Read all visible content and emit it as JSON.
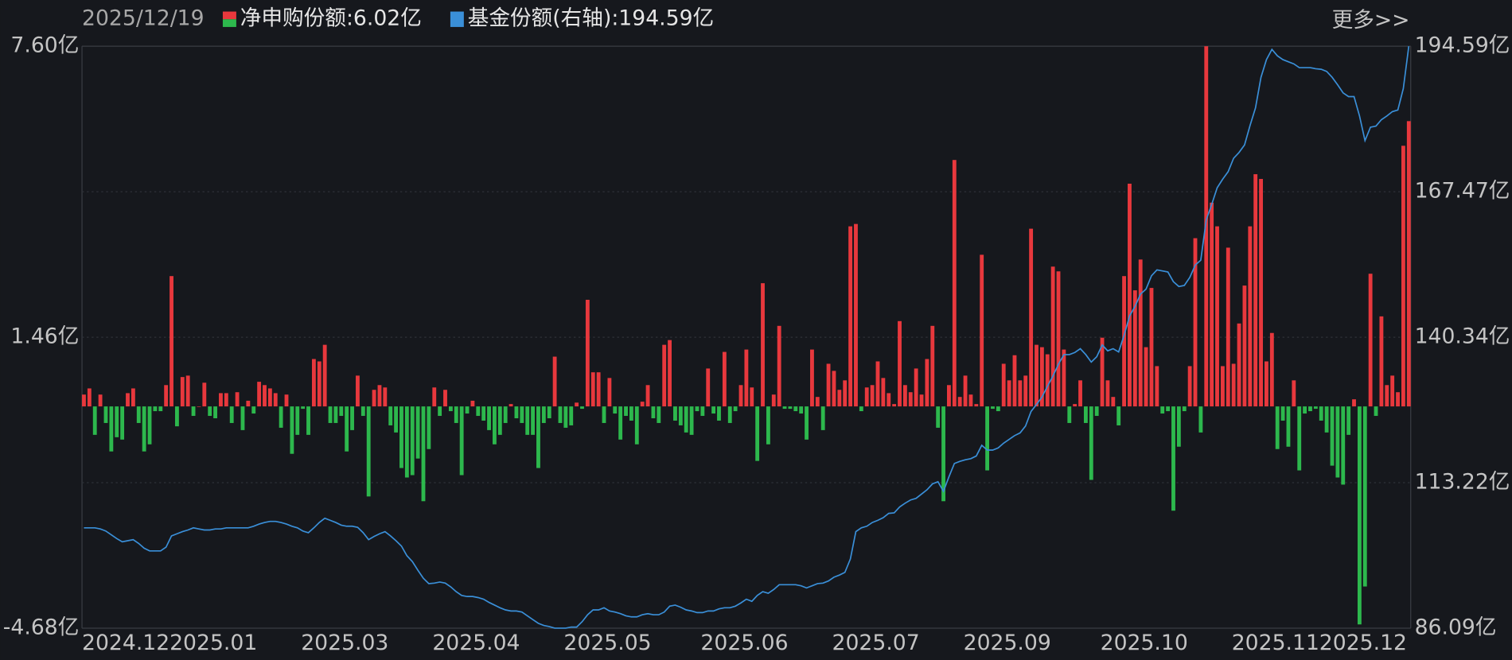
{
  "chart_data": {
    "type": "bar_line",
    "date": "2025/12/19",
    "more": "更多>>",
    "categories": [
      "2024.12",
      null,
      null,
      null,
      null,
      null,
      null,
      null,
      null,
      null,
      null,
      null,
      null,
      null,
      null,
      null,
      "2025.01",
      null,
      null,
      null,
      null,
      null,
      null,
      null,
      null,
      null,
      null,
      null,
      null,
      null,
      null,
      null,
      null,
      null,
      null,
      null,
      null,
      null,
      null,
      null,
      "2025.03",
      null,
      null,
      null,
      null,
      null,
      null,
      null,
      null,
      null,
      null,
      null,
      null,
      null,
      null,
      null,
      null,
      null,
      null,
      null,
      null,
      null,
      null,
      null,
      "2025.04",
      null,
      null,
      null,
      null,
      null,
      null,
      null,
      null,
      null,
      null,
      null,
      null,
      null,
      null,
      null,
      null,
      null,
      null,
      null,
      null,
      null,
      null,
      null,
      "2025.05",
      null,
      null,
      null,
      null,
      null,
      null,
      null,
      null,
      null,
      null,
      null,
      null,
      null,
      null,
      null,
      null,
      null,
      null,
      null,
      null,
      null,
      null,
      null,
      null,
      "2025.06",
      null,
      null,
      null,
      null,
      null,
      null,
      null,
      null,
      null,
      null,
      null,
      null,
      null,
      null,
      null,
      null,
      null,
      null,
      null,
      null,
      null,
      null,
      null,
      "2025.07",
      null,
      null,
      null,
      null,
      null,
      null,
      null,
      null,
      null,
      null,
      null,
      null,
      null,
      null,
      null,
      null,
      null,
      null,
      null,
      null,
      null,
      null,
      null,
      "2025.09",
      null,
      null,
      null,
      null,
      null,
      null,
      null,
      null,
      null,
      null,
      null,
      null,
      null,
      null,
      null,
      null,
      null,
      null,
      null,
      null,
      null,
      null,
      null,
      null,
      "2025.10",
      null,
      null,
      null,
      null,
      null,
      null,
      null,
      null,
      null,
      null,
      null,
      null,
      null,
      null,
      null,
      null,
      null,
      null,
      null,
      null,
      null,
      null,
      null,
      "2025.11",
      null,
      null,
      null,
      null,
      null,
      null,
      null,
      null,
      null,
      null,
      null,
      null,
      null,
      null,
      null,
      "2025.12",
      null,
      null,
      null,
      null,
      null,
      null,
      null,
      null,
      null,
      null,
      null,
      null,
      null,
      null,
      null,
      null
    ],
    "series": [
      {
        "name": "净申购份额:6.02亿",
        "type": "bar",
        "color": "#e8383d",
        "negative_color": "#2db84d",
        "values": [
          0.25,
          0.38,
          -0.6,
          0.25,
          -0.35,
          -0.95,
          -0.65,
          -0.7,
          0.28,
          0.38,
          -0.35,
          -0.95,
          -0.8,
          -0.1,
          -0.1,
          0.45,
          2.75,
          -0.42,
          0.62,
          0.65,
          -0.2,
          0,
          0.5,
          -0.2,
          -0.25,
          0.28,
          0.28,
          -0.35,
          0.3,
          -0.5,
          0.12,
          -0.15,
          0.52,
          0.45,
          0.38,
          0.28,
          -0.45,
          0.25,
          -1.0,
          -0.6,
          -0.05,
          -0.6,
          1.0,
          0.95,
          1.3,
          -0.35,
          -0.35,
          -0.2,
          -0.95,
          -0.5,
          0.65,
          -0.2,
          -1.9,
          0.35,
          0.45,
          0.4,
          -0.4,
          -0.55,
          -1.3,
          -1.5,
          -1.45,
          -1.1,
          -2.0,
          -0.9,
          0.4,
          -0.2,
          0.35,
          -0.1,
          -0.35,
          -1.45,
          -0.15,
          0.12,
          -0.2,
          -0.3,
          -0.5,
          -0.8,
          -0.6,
          -0.35,
          0.05,
          -0.25,
          -0.35,
          -0.6,
          -0.6,
          -1.3,
          -0.35,
          -0.25,
          1.05,
          -0.35,
          -0.45,
          -0.4,
          0.08,
          -0.05,
          2.25,
          0.72,
          0.72,
          -0.35,
          0.6,
          -0.15,
          -0.7,
          -0.2,
          -0.3,
          -0.8,
          0.1,
          0.45,
          -0.25,
          -0.35,
          1.3,
          1.4,
          -0.3,
          -0.4,
          -0.55,
          -0.6,
          -0.1,
          -0.2,
          0.8,
          -0.15,
          -0.3,
          1.15,
          -0.35,
          -0.1,
          0.45,
          1.2,
          0.4,
          -1.15,
          2.6,
          -0.8,
          0.25,
          1.7,
          -0.05,
          -0.05,
          -0.1,
          -0.15,
          -0.7,
          1.2,
          0.2,
          -0.5,
          0.9,
          0.75,
          0.35,
          0.55,
          3.8,
          3.85,
          -0.1,
          0.4,
          0.45,
          0.95,
          0.6,
          0.28,
          0.05,
          1.8,
          0.45,
          0.3,
          0.8,
          0.25,
          1.0,
          1.7,
          -0.45,
          -2.0,
          0.45,
          5.2,
          0.2,
          0.65,
          0.25,
          0.05,
          3.2,
          -1.35,
          -0.05,
          -0.1,
          0.9,
          0.55,
          1.08,
          0.55,
          0.65,
          3.75,
          1.3,
          1.25,
          1.1,
          2.95,
          2.85,
          1.2,
          -0.35,
          0.05,
          0.55,
          -0.35,
          -1.55,
          -0.2,
          1.45,
          0.55,
          0.2,
          -0.4,
          2.75,
          4.7,
          2.45,
          3.1,
          1.25,
          2.5,
          0.85,
          -0.15,
          -0.1,
          -2.2,
          -0.85,
          -0.1,
          0.85,
          3.55,
          -0.55,
          7.6,
          4.3,
          3.8,
          0.85,
          3.35,
          0.9,
          1.75,
          2.55,
          3.8,
          4.9,
          4.8,
          0.95,
          1.55,
          -0.9,
          -0.3,
          -0.85,
          0.55,
          -1.35,
          -0.15,
          -0.1,
          -0.05,
          -0.3,
          -0.55,
          -1.25,
          -1.5,
          -1.65,
          -0.6,
          0.15,
          -4.6,
          -3.8,
          2.8,
          -0.2,
          1.9,
          0.45,
          0.65,
          0.3,
          5.5,
          6.02
        ]
      },
      {
        "name": "基金份额(右轴):194.59亿",
        "type": "line",
        "axis": "y2",
        "color": "#3a8fd8",
        "values": [
          104.8,
          104.8,
          104.8,
          104.6,
          104.2,
          103.5,
          102.8,
          102.2,
          102.4,
          102.6,
          101.9,
          101.0,
          100.5,
          100.5,
          100.5,
          101.2,
          103.3,
          103.7,
          104.1,
          104.4,
          104.8,
          104.6,
          104.4,
          104.4,
          104.6,
          104.6,
          104.8,
          104.8,
          104.8,
          104.8,
          104.8,
          105.1,
          105.5,
          105.8,
          106.0,
          106.0,
          105.8,
          105.5,
          105.1,
          104.8,
          104.2,
          103.9,
          104.8,
          105.8,
          106.6,
          106.2,
          105.8,
          105.3,
          105.1,
          105.1,
          104.9,
          103.9,
          102.6,
          103.2,
          103.7,
          104.1,
          103.3,
          102.4,
          101.4,
          99.6,
          98.5,
          96.9,
          95.4,
          94.4,
          94.5,
          94.7,
          94.5,
          93.8,
          92.9,
          92.2,
          92.0,
          92.0,
          91.8,
          91.5,
          90.9,
          90.4,
          89.9,
          89.5,
          89.3,
          89.3,
          89.1,
          88.4,
          87.7,
          87.0,
          86.6,
          86.4,
          86.1,
          86.1,
          86.1,
          86.3,
          86.3,
          87.3,
          88.6,
          89.5,
          89.5,
          89.9,
          89.3,
          89.1,
          88.8,
          88.4,
          88.2,
          88.2,
          88.6,
          88.8,
          88.6,
          88.6,
          89.1,
          90.2,
          90.4,
          90.0,
          89.5,
          89.3,
          89.0,
          89.0,
          89.3,
          89.3,
          89.7,
          89.9,
          89.9,
          90.2,
          90.8,
          91.5,
          91.1,
          92.2,
          92.9,
          92.6,
          93.3,
          94.2,
          94.2,
          94.2,
          94.2,
          94.0,
          93.6,
          94.0,
          94.4,
          94.5,
          94.9,
          95.6,
          96.0,
          96.5,
          99.0,
          104.1,
          104.8,
          105.1,
          105.8,
          106.2,
          106.7,
          107.5,
          107.6,
          108.7,
          109.4,
          110.0,
          110.3,
          111.1,
          111.9,
          113.0,
          113.4,
          111.6,
          114.3,
          116.8,
          117.2,
          117.5,
          117.7,
          118.2,
          120.2,
          119.3,
          119.3,
          119.7,
          120.6,
          121.3,
          122.0,
          122.5,
          123.8,
          126.5,
          127.8,
          129.2,
          131.2,
          133.1,
          135.3,
          137.1,
          137.1,
          137.5,
          138.2,
          137.1,
          135.7,
          136.7,
          138.9,
          137.8,
          138.2,
          137.6,
          140.7,
          144.3,
          146.1,
          148.4,
          149.3,
          151.8,
          152.9,
          152.7,
          152.5,
          150.7,
          149.8,
          150.0,
          151.5,
          153.8,
          154.7,
          162.2,
          165.1,
          168.2,
          169.8,
          171.2,
          173.7,
          174.8,
          176.2,
          179.8,
          183.1,
          188.8,
          192.1,
          194.0,
          192.8,
          192.1,
          191.7,
          191.3,
          190.6,
          190.6,
          190.6,
          190.4,
          190.3,
          189.9,
          188.8,
          187.4,
          185.9,
          185.2,
          185.2,
          181.6,
          177.0,
          179.5,
          179.7,
          180.9,
          181.6,
          182.4,
          182.7,
          186.7,
          194.59
        ]
      }
    ],
    "ylim": [
      -4.68,
      7.6
    ],
    "yticks": [
      {
        "value": -4.68,
        "label": "-4.68亿"
      },
      {
        "value": 1.46,
        "label": "1.46亿"
      },
      {
        "value": 7.6,
        "label": "7.60亿"
      }
    ],
    "y2lim": [
      86.09,
      194.59
    ],
    "y2ticks": [
      {
        "value": 86.09,
        "label": "86.09亿"
      },
      {
        "value": 113.22,
        "label": "113.22亿"
      },
      {
        "value": 140.34,
        "label": "140.34亿"
      },
      {
        "value": 167.47,
        "label": "167.47亿"
      },
      {
        "value": 194.59,
        "label": "194.59亿"
      }
    ],
    "grid": true
  }
}
